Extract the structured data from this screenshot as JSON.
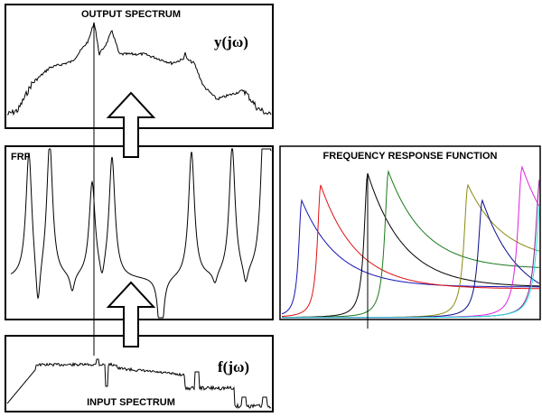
{
  "panels": {
    "output": {
      "title": "OUTPUT SPECTRUM",
      "math": "y(jω)"
    },
    "frf": {
      "title": "FRF"
    },
    "input": {
      "title": "INPUT SPECTRUM",
      "math": "f(jω)"
    },
    "modes": {
      "title": "FREQUENCY RESPONSE FUNCTION"
    }
  },
  "mode_colors": [
    "#1414b4",
    "#e01010",
    "#000000",
    "#1a7a1a",
    "#8a8a12",
    "#0a0a8c",
    "#e020e0",
    "#8c1a8c",
    "#20e0e0"
  ],
  "flow_arrows": [
    "arrow-input-to-frf",
    "arrow-frf-to-output"
  ]
}
